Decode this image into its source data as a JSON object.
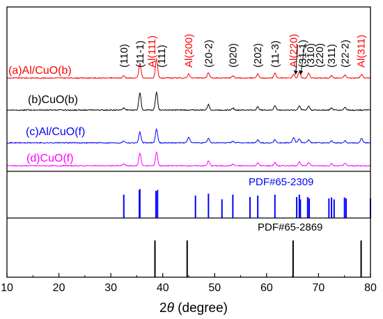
{
  "chart_data": {
    "type": "line",
    "title": "",
    "xlabel_prefix": "2",
    "xlabel_theta": "θ",
    "xlabel_suffix": " (degree)",
    "ylabel": "",
    "xlim": [
      10,
      80
    ],
    "xticks": [
      10,
      20,
      30,
      40,
      50,
      60,
      70,
      80
    ],
    "grid": false,
    "legend": "none",
    "colors": {
      "red": "#ff0000",
      "black": "#000000",
      "blue": "#0000ff",
      "magenta": "#ff00ff"
    },
    "series": [
      {
        "name": "(a)Al/CuO(b)",
        "color": "#ff0000",
        "peaks": [
          [
            32.5,
            0.12
          ],
          [
            35.6,
            0.75
          ],
          [
            38.8,
            0.95
          ],
          [
            45.0,
            0.22
          ],
          [
            48.8,
            0.28
          ],
          [
            53.5,
            0.12
          ],
          [
            58.3,
            0.2
          ],
          [
            61.6,
            0.24
          ],
          [
            65.2,
            0.2
          ],
          [
            66.3,
            0.3
          ],
          [
            68.1,
            0.25
          ],
          [
            72.5,
            0.12
          ],
          [
            75.1,
            0.15
          ],
          [
            78.3,
            0.18
          ]
        ]
      },
      {
        "name": "(b)CuO(b)",
        "color": "#000000",
        "peaks": [
          [
            32.5,
            0.1
          ],
          [
            35.6,
            0.9
          ],
          [
            38.8,
            0.9
          ],
          [
            48.8,
            0.28
          ],
          [
            53.5,
            0.1
          ],
          [
            58.3,
            0.16
          ],
          [
            61.6,
            0.22
          ],
          [
            66.3,
            0.22
          ],
          [
            68.1,
            0.2
          ],
          [
            72.5,
            0.1
          ],
          [
            75.1,
            0.14
          ]
        ]
      },
      {
        "name": "(c)Al/CuO(f)",
        "color": "#0000ff",
        "peaks": [
          [
            32.5,
            0.1
          ],
          [
            35.6,
            0.55
          ],
          [
            38.8,
            0.7
          ],
          [
            45.0,
            0.3
          ],
          [
            48.8,
            0.22
          ],
          [
            53.5,
            0.08
          ],
          [
            58.3,
            0.14
          ],
          [
            61.6,
            0.16
          ],
          [
            65.2,
            0.28
          ],
          [
            66.3,
            0.2
          ],
          [
            68.1,
            0.16
          ],
          [
            72.5,
            0.1
          ],
          [
            75.1,
            0.1
          ],
          [
            78.3,
            0.22
          ]
        ]
      },
      {
        "name": "(d)CuO(f)",
        "color": "#ff00ff",
        "peaks": [
          [
            32.5,
            0.1
          ],
          [
            35.6,
            0.65
          ],
          [
            38.8,
            0.7
          ],
          [
            48.8,
            0.25
          ],
          [
            53.5,
            0.08
          ],
          [
            58.3,
            0.14
          ],
          [
            61.6,
            0.16
          ],
          [
            66.3,
            0.2
          ],
          [
            68.1,
            0.18
          ],
          [
            72.5,
            0.1
          ],
          [
            75.1,
            0.12
          ]
        ]
      }
    ],
    "reference_patterns": [
      {
        "name": "PDF#65-2309",
        "color": "#0000ff",
        "sticks": [
          [
            32.5,
            0.5
          ],
          [
            35.5,
            0.6
          ],
          [
            35.6,
            0.62
          ],
          [
            38.7,
            0.58
          ],
          [
            39.0,
            0.6
          ],
          [
            46.3,
            0.48
          ],
          [
            48.8,
            0.52
          ],
          [
            51.4,
            0.4
          ],
          [
            53.5,
            0.5
          ],
          [
            56.8,
            0.45
          ],
          [
            58.3,
            0.48
          ],
          [
            61.6,
            0.5
          ],
          [
            65.8,
            0.45
          ],
          [
            66.3,
            0.5
          ],
          [
            66.5,
            0.4
          ],
          [
            67.9,
            0.45
          ],
          [
            68.2,
            0.42
          ],
          [
            72.0,
            0.42
          ],
          [
            72.5,
            0.44
          ],
          [
            73.0,
            0.4
          ],
          [
            75.0,
            0.44
          ],
          [
            75.3,
            0.42
          ],
          [
            80.0,
            0.42
          ]
        ]
      },
      {
        "name": "PDF#65-2869",
        "color": "#000000",
        "sticks": [
          [
            38.5,
            0.62
          ],
          [
            44.7,
            0.62
          ],
          [
            65.1,
            0.62
          ],
          [
            78.2,
            0.62
          ]
        ]
      }
    ],
    "annotations": [
      {
        "text": "(110)",
        "x": 32.5,
        "color": "#000000"
      },
      {
        "text": "(11-1)",
        "x": 35.6,
        "color": "#000000"
      },
      {
        "text": "Al(111)",
        "x": 37.9,
        "color": "#ff0000"
      },
      {
        "text": "(111)",
        "x": 39.8,
        "color": "#000000"
      },
      {
        "text": "Al(200)",
        "x": 45.0,
        "color": "#ff0000"
      },
      {
        "text": "(20-2)",
        "x": 48.8,
        "color": "#000000"
      },
      {
        "text": "(020)",
        "x": 53.5,
        "color": "#000000"
      },
      {
        "text": "(202)",
        "x": 58.3,
        "color": "#000000"
      },
      {
        "text": "(11-3)",
        "x": 61.6,
        "color": "#000000"
      },
      {
        "text": "Al(220)",
        "x": 65.2,
        "color": "#ff0000"
      },
      {
        "text": "(31-1)",
        "x": 66.9,
        "color": "#000000"
      },
      {
        "text": "(310)",
        "x": 68.5,
        "color": "#000000"
      },
      {
        "text": "(220)",
        "x": 70.2,
        "color": "#000000"
      },
      {
        "text": "(311)",
        "x": 72.5,
        "color": "#000000"
      },
      {
        "text": "(22-2)",
        "x": 75.1,
        "color": "#000000"
      },
      {
        "text": "Al(311)",
        "x": 78.2,
        "color": "#ff0000"
      }
    ]
  }
}
